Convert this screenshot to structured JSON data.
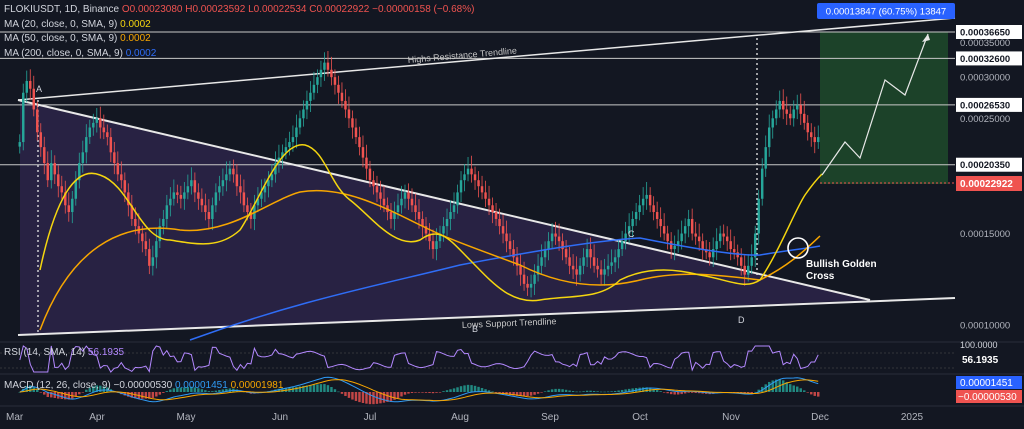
{
  "header": {
    "symbol": "FLOKIUSDT, 1D, Binance",
    "open": "O0.00023080",
    "high": "H0.00023592",
    "low": "L0.00022534",
    "close": "C0.00022922",
    "change": "−0.00000158 (−0.68%)"
  },
  "indicators": {
    "ma20_label": "MA (20, close, 0, SMA, 9)",
    "ma20_value": "0.0002",
    "ma50_label": "MA (50, close, 0, SMA, 9)",
    "ma50_value": "0.0002",
    "ma200_label": "MA (200, close, 0, SMA, 9)",
    "ma200_value": "0.0002"
  },
  "rsi": {
    "label": "RSI (14, SMA, 14)",
    "value": "56.1935"
  },
  "macd": {
    "label": "MACD (12, 26, close, 9)",
    "v1": "−0.00000530",
    "v2": "0.00001451",
    "v3": "0.00001981"
  },
  "colors": {
    "background": "#131722",
    "up_candle": "#26a69a",
    "down_candle": "#ef5350",
    "ma20": "#f5d60f",
    "ma50": "#f7a600",
    "ma200": "#2f6df6",
    "wedge_fill": "#3a2c5e",
    "target_fill": "#1e4a2a",
    "rsi": "#b388ff",
    "price_tag": "#ef5350",
    "target_tag": "#2962ff"
  },
  "chart_data": {
    "type": "candlestick",
    "scale": "log",
    "ylim": [
      9e-05,
      0.00042
    ],
    "x_labels": [
      "Mar",
      "Apr",
      "May",
      "Jun",
      "Jul",
      "Aug",
      "Sep",
      "Oct",
      "Nov",
      "Dec",
      "2025"
    ],
    "y_ticks": [
      "0.00036650",
      "0.00035000",
      "0.00032600",
      "0.00030000",
      "0.00026530",
      "0.00025000",
      "0.00020350",
      "0.00015000",
      "0.00010000"
    ],
    "y_ticks_values": [
      0.0003665,
      0.00035,
      0.000326,
      0.0003,
      0.0002653,
      0.00025,
      0.0002035,
      0.00015,
      0.0001
    ],
    "current_price": "0.00022922",
    "current_price_value": 0.00022922,
    "target_label": "0.00013847 (60.75%) 13847",
    "target_value": 0.0003665,
    "levels": [
      0.0003665,
      0.000326,
      0.0002653,
      0.0002035
    ],
    "annotations": {
      "resistance": "Highs Resistance Trendline",
      "support": "Lows Support Trendline",
      "golden_cross": "Bullish Golden Cross",
      "point_a": "A",
      "point_b": "B",
      "point_c": "C",
      "point_d": "D"
    },
    "closes": [
      0.000225,
      0.00028,
      0.000295,
      0.000285,
      0.00026,
      0.000235,
      0.00022,
      0.000205,
      0.00019,
      0.000205,
      0.000195,
      0.000185,
      0.00018,
      0.00017,
      0.000165,
      0.000175,
      0.00019,
      0.000205,
      0.000215,
      0.00023,
      0.00024,
      0.000245,
      0.00025,
      0.00024,
      0.000235,
      0.00023,
      0.000215,
      0.000205,
      0.000195,
      0.00019,
      0.00018,
      0.00017,
      0.00016,
      0.000155,
      0.00015,
      0.000145,
      0.00014,
      0.00013,
      0.000135,
      0.000145,
      0.000155,
      0.00016,
      0.00017,
      0.000175,
      0.00018,
      0.000178,
      0.000175,
      0.00018,
      0.000185,
      0.00019,
      0.00018,
      0.000175,
      0.00017,
      0.000165,
      0.00016,
      0.00017,
      0.00018,
      0.000185,
      0.00019,
      0.000195,
      0.0002,
      0.000195,
      0.000185,
      0.00018,
      0.00017,
      0.000165,
      0.00016,
      0.00017,
      0.000175,
      0.00018,
      0.000185,
      0.00019,
      0.000195,
      0.000205,
      0.00021,
      0.000215,
      0.00022,
      0.000225,
      0.00023,
      0.00024,
      0.00025,
      0.00026,
      0.00027,
      0.00028,
      0.00029,
      0.0003,
      0.00031,
      0.00032,
      0.00031,
      0.0003,
      0.00029,
      0.00028,
      0.00027,
      0.00026,
      0.00025,
      0.00024,
      0.00023,
      0.00022,
      0.00021,
      0.0002,
      0.00019,
      0.000185,
      0.00018,
      0.000175,
      0.00017,
      0.000165,
      0.00016,
      0.000165,
      0.00017,
      0.000175,
      0.00018,
      0.000175,
      0.00017,
      0.000165,
      0.00016,
      0.000155,
      0.00015,
      0.000145,
      0.00014,
      0.000145,
      0.00015,
      0.000155,
      0.00016,
      0.000165,
      0.00017,
      0.00018,
      0.00019,
      0.000195,
      0.0002,
      0.000195,
      0.00019,
      0.000185,
      0.00018,
      0.000175,
      0.00017,
      0.000165,
      0.00016,
      0.000155,
      0.00015,
      0.000145,
      0.00014,
      0.000135,
      0.00013,
      0.000125,
      0.00012,
      0.000118,
      0.00012,
      0.000125,
      0.00013,
      0.000135,
      0.00014,
      0.000145,
      0.00015,
      0.000148,
      0.000145,
      0.00014,
      0.000135,
      0.00013,
      0.000128,
      0.000125,
      0.00013,
      0.000135,
      0.00014,
      0.000135,
      0.00013,
      0.000128,
      0.000125,
      0.000128,
      0.00013,
      0.000132,
      0.000135,
      0.00014,
      0.000145,
      0.00015,
      0.000155,
      0.00016,
      0.000165,
      0.00017,
      0.000175,
      0.000178,
      0.00017,
      0.000165,
      0.00016,
      0.000155,
      0.00015,
      0.000145,
      0.00014,
      0.000142,
      0.000145,
      0.00015,
      0.000155,
      0.00016,
      0.00015,
      0.000148,
      0.000145,
      0.00014,
      0.000138,
      0.000135,
      0.00014,
      0.000145,
      0.00015,
      0.000148,
      0.000145,
      0.00014,
      0.000138,
      0.000135,
      0.00013,
      0.000125,
      0.00013,
      0.000135,
      0.00015,
      0.000175,
      0.0002,
      0.00022,
      0.00024,
      0.00025,
      0.00026,
      0.00027,
      0.00026,
      0.000255,
      0.00025,
      0.00026,
      0.000265,
      0.000255,
      0.000245,
      0.000235,
      0.00023,
      0.000225,
      0.00023
    ]
  }
}
